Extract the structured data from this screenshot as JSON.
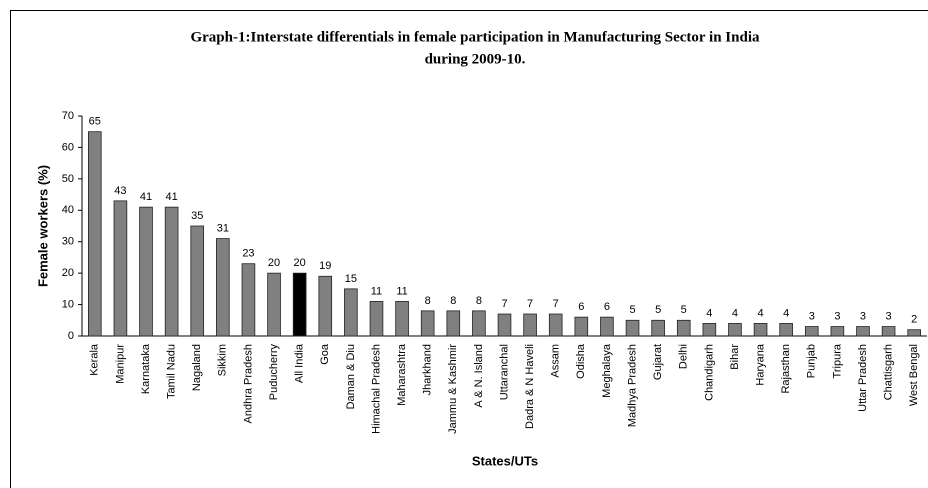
{
  "chart_data": {
    "type": "bar",
    "title": [
      "Graph-1:Interstate differentials in female participation in Manufacturing Sector in India",
      "during 2009-10."
    ],
    "y_label": "Female workers (%)",
    "x_label": "States/UTs",
    "categories": [
      "Kerala",
      "Manipur",
      "Karnataka",
      "Tamil Nadu",
      "Nagaland",
      "Sikkim",
      "Andhra Pradesh",
      "Puducherry",
      "All India",
      "Goa",
      "Daman & Diu",
      "Himachal Pradesh",
      "Maharashtra",
      "Jharkhand",
      "Jammu & Kashmir",
      "A & N. Island",
      "Uttaranchal",
      "Dadra & N Haveli",
      "Assam",
      "Odisha",
      "Meghalaya",
      "Madhya Pradesh",
      "Gujarat",
      "Delhi",
      "Chandigarh",
      "Bihar",
      "Haryana",
      "Rajasthan",
      "Punjab",
      "Tripura",
      "Uttar Pradesh",
      "Chattisgarh",
      "West Bengal"
    ],
    "values": [
      65,
      43,
      41,
      41,
      35,
      31,
      23,
      20,
      20,
      19,
      15,
      11,
      11,
      8,
      8,
      8,
      7,
      7,
      7,
      6,
      6,
      5,
      5,
      5,
      4,
      4,
      4,
      4,
      3,
      3,
      3,
      3,
      2
    ],
    "colors": [
      "#808080",
      "#808080",
      "#808080",
      "#808080",
      "#808080",
      "#808080",
      "#808080",
      "#808080",
      "#000000",
      "#808080",
      "#808080",
      "#808080",
      "#808080",
      "#808080",
      "#808080",
      "#808080",
      "#808080",
      "#808080",
      "#808080",
      "#808080",
      "#808080",
      "#808080",
      "#808080",
      "#808080",
      "#808080",
      "#808080",
      "#808080",
      "#808080",
      "#808080",
      "#808080",
      "#808080",
      "#808080",
      "#808080"
    ],
    "ylim": [
      0,
      70
    ],
    "yticks": [
      0,
      10,
      20,
      30,
      40,
      50,
      60,
      70
    ],
    "grid": false
  }
}
